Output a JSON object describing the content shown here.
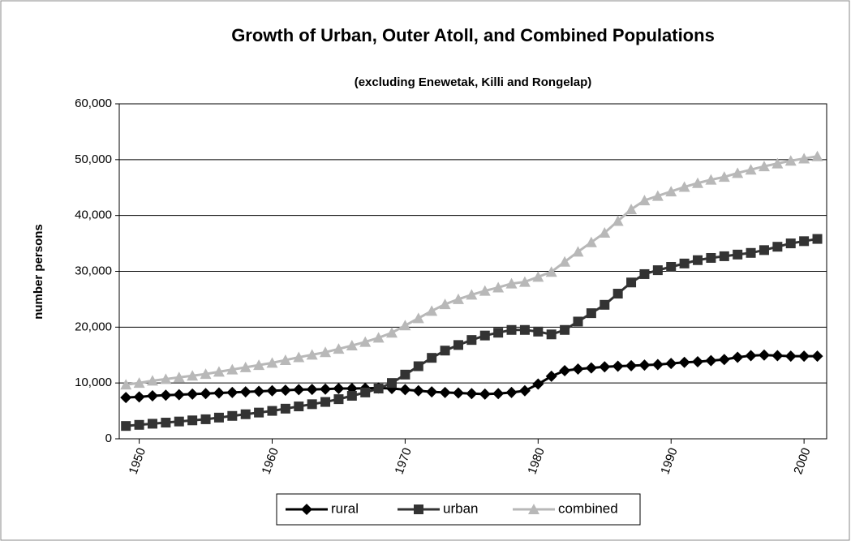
{
  "chart_data": {
    "type": "line",
    "title": "Growth of Urban, Outer Atoll, and Combined Populations",
    "subtitle": "(excluding Enewetak, Killi and Rongelap)",
    "y_label": "number persons",
    "x": [
      1949,
      1950,
      1951,
      1952,
      1953,
      1954,
      1955,
      1956,
      1957,
      1958,
      1959,
      1960,
      1961,
      1962,
      1963,
      1964,
      1965,
      1966,
      1967,
      1968,
      1969,
      1970,
      1971,
      1972,
      1973,
      1974,
      1975,
      1976,
      1977,
      1978,
      1979,
      1980,
      1981,
      1982,
      1983,
      1984,
      1985,
      1986,
      1987,
      1988,
      1989,
      1990,
      1991,
      1992,
      1993,
      1994,
      1995,
      1996,
      1997,
      1998,
      1999,
      2000,
      2001
    ],
    "series": [
      {
        "name": "rural",
        "color": "#000000",
        "marker": "diamond",
        "values": [
          7400,
          7500,
          7700,
          7800,
          7900,
          8000,
          8100,
          8200,
          8300,
          8400,
          8500,
          8600,
          8700,
          8800,
          8850,
          8900,
          9000,
          9000,
          9050,
          9100,
          9000,
          8800,
          8600,
          8400,
          8300,
          8200,
          8100,
          8000,
          8100,
          8300,
          8600,
          9800,
          11200,
          12200,
          12500,
          12700,
          12900,
          13000,
          13100,
          13200,
          13300,
          13500,
          13700,
          13800,
          14000,
          14200,
          14600,
          14900,
          15000,
          14900,
          14800,
          14800,
          14800
        ]
      },
      {
        "name": "urban",
        "color": "#333333",
        "marker": "square",
        "values": [
          2300,
          2500,
          2700,
          2900,
          3100,
          3300,
          3500,
          3800,
          4100,
          4400,
          4700,
          5000,
          5400,
          5800,
          6200,
          6600,
          7100,
          7700,
          8300,
          9000,
          10000,
          11500,
          13000,
          14500,
          15800,
          16800,
          17700,
          18500,
          19000,
          19500,
          19500,
          19200,
          18700,
          19500,
          21000,
          22500,
          24000,
          26000,
          28000,
          29500,
          30200,
          30800,
          31400,
          32000,
          32400,
          32700,
          33000,
          33300,
          33800,
          34400,
          35000,
          35400,
          35800
        ]
      },
      {
        "name": "combined",
        "color": "#b8b8b8",
        "marker": "triangle",
        "values": [
          9700,
          10000,
          10400,
          10700,
          11000,
          11300,
          11600,
          12000,
          12400,
          12800,
          13200,
          13600,
          14100,
          14600,
          15050,
          15500,
          16100,
          16700,
          17350,
          18100,
          19000,
          20300,
          21600,
          22900,
          24100,
          25000,
          25800,
          26500,
          27100,
          27800,
          28100,
          29000,
          29900,
          31700,
          33500,
          35200,
          36900,
          39000,
          41100,
          42700,
          43500,
          44300,
          45100,
          45800,
          46400,
          46900,
          47600,
          48200,
          48800,
          49300,
          49800,
          50200,
          50600
        ]
      }
    ],
    "xlim": [
      1948.5,
      2001.7
    ],
    "xticks": [
      1950,
      1960,
      1970,
      1980,
      1990,
      2000
    ],
    "ylim": [
      0,
      60000
    ],
    "yticks": [
      0,
      {
        "value": 10000,
        "label": "10,000"
      },
      {
        "value": 20000,
        "label": "20,000"
      },
      {
        "value": 30000,
        "label": "30,000"
      },
      {
        "value": 40000,
        "label": "40,000"
      },
      {
        "value": 50000,
        "label": "50,000"
      },
      {
        "value": 60000,
        "label": "60,000"
      }
    ],
    "grid": true,
    "legend": "bottom"
  }
}
